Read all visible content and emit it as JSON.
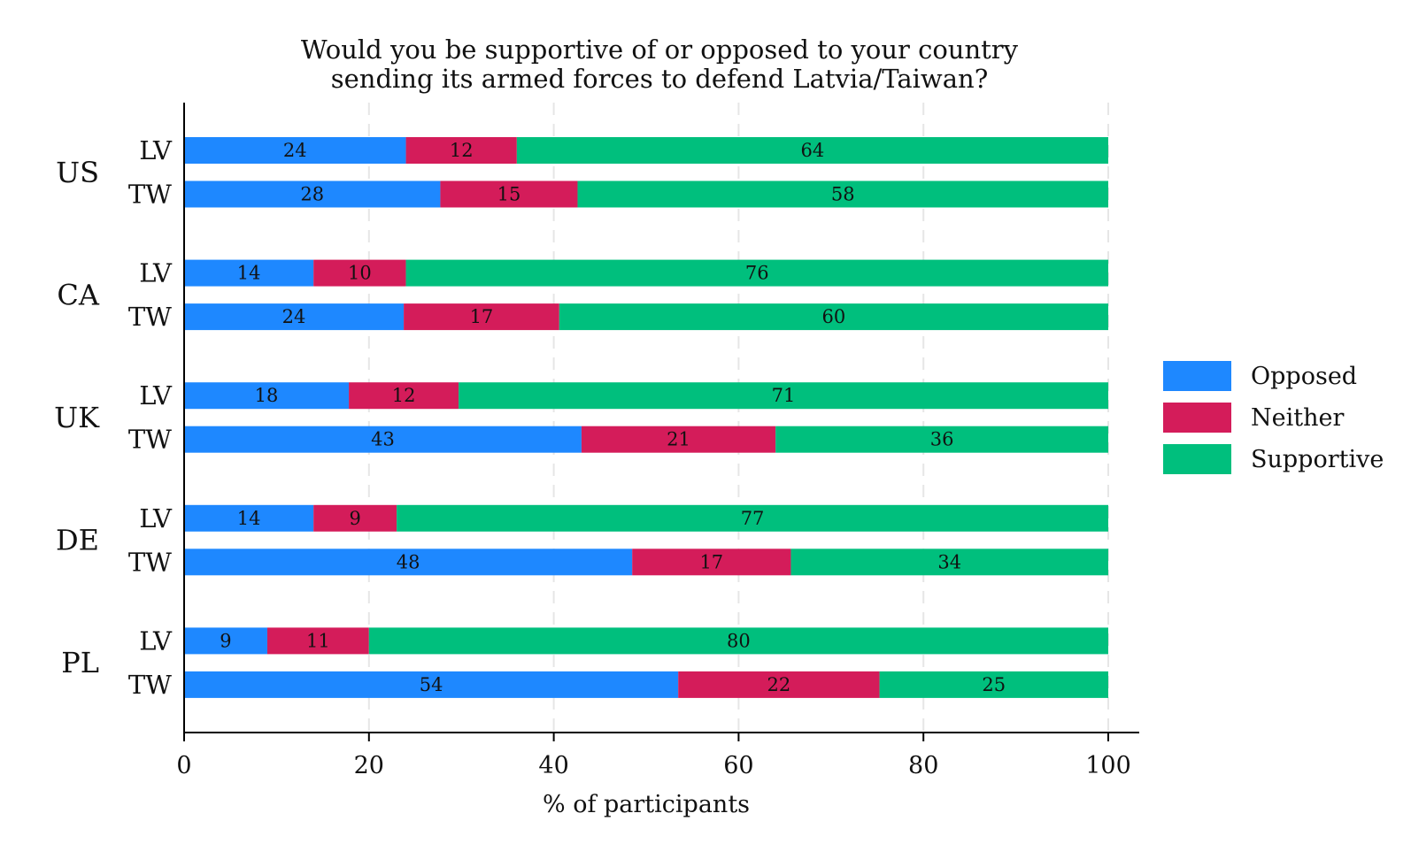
{
  "chart_data": {
    "type": "bar",
    "orientation": "horizontal",
    "stacked": true,
    "title": [
      "Would you be supportive of or opposed to your country",
      "sending its armed forces to defend Latvia/Taiwan?"
    ],
    "xlabel": "% of participants",
    "ylabel": "",
    "xlim": [
      0,
      100
    ],
    "xticks": [
      0,
      20,
      40,
      60,
      80,
      100
    ],
    "grid": "vertical dashed",
    "legend_position": "right",
    "series": [
      {
        "name": "Opposed",
        "color": "#1e88ff"
      },
      {
        "name": "Neither",
        "color": "#d41c5a"
      },
      {
        "name": "Supportive",
        "color": "#00bf7d"
      }
    ],
    "groups": [
      {
        "country": "US",
        "bars": [
          {
            "target": "LV",
            "values": [
              24,
              12,
              64
            ]
          },
          {
            "target": "TW",
            "values": [
              28,
              15,
              58
            ]
          }
        ]
      },
      {
        "country": "CA",
        "bars": [
          {
            "target": "LV",
            "values": [
              14,
              10,
              76
            ]
          },
          {
            "target": "TW",
            "values": [
              24,
              17,
              60
            ]
          }
        ]
      },
      {
        "country": "UK",
        "bars": [
          {
            "target": "LV",
            "values": [
              18,
              12,
              71
            ]
          },
          {
            "target": "TW",
            "values": [
              43,
              21,
              36
            ]
          }
        ]
      },
      {
        "country": "DE",
        "bars": [
          {
            "target": "LV",
            "values": [
              14,
              9,
              77
            ]
          },
          {
            "target": "TW",
            "values": [
              48,
              17,
              34
            ]
          }
        ]
      },
      {
        "country": "PL",
        "bars": [
          {
            "target": "LV",
            "values": [
              9,
              11,
              80
            ]
          },
          {
            "target": "TW",
            "values": [
              54,
              22,
              25
            ]
          }
        ]
      }
    ]
  }
}
